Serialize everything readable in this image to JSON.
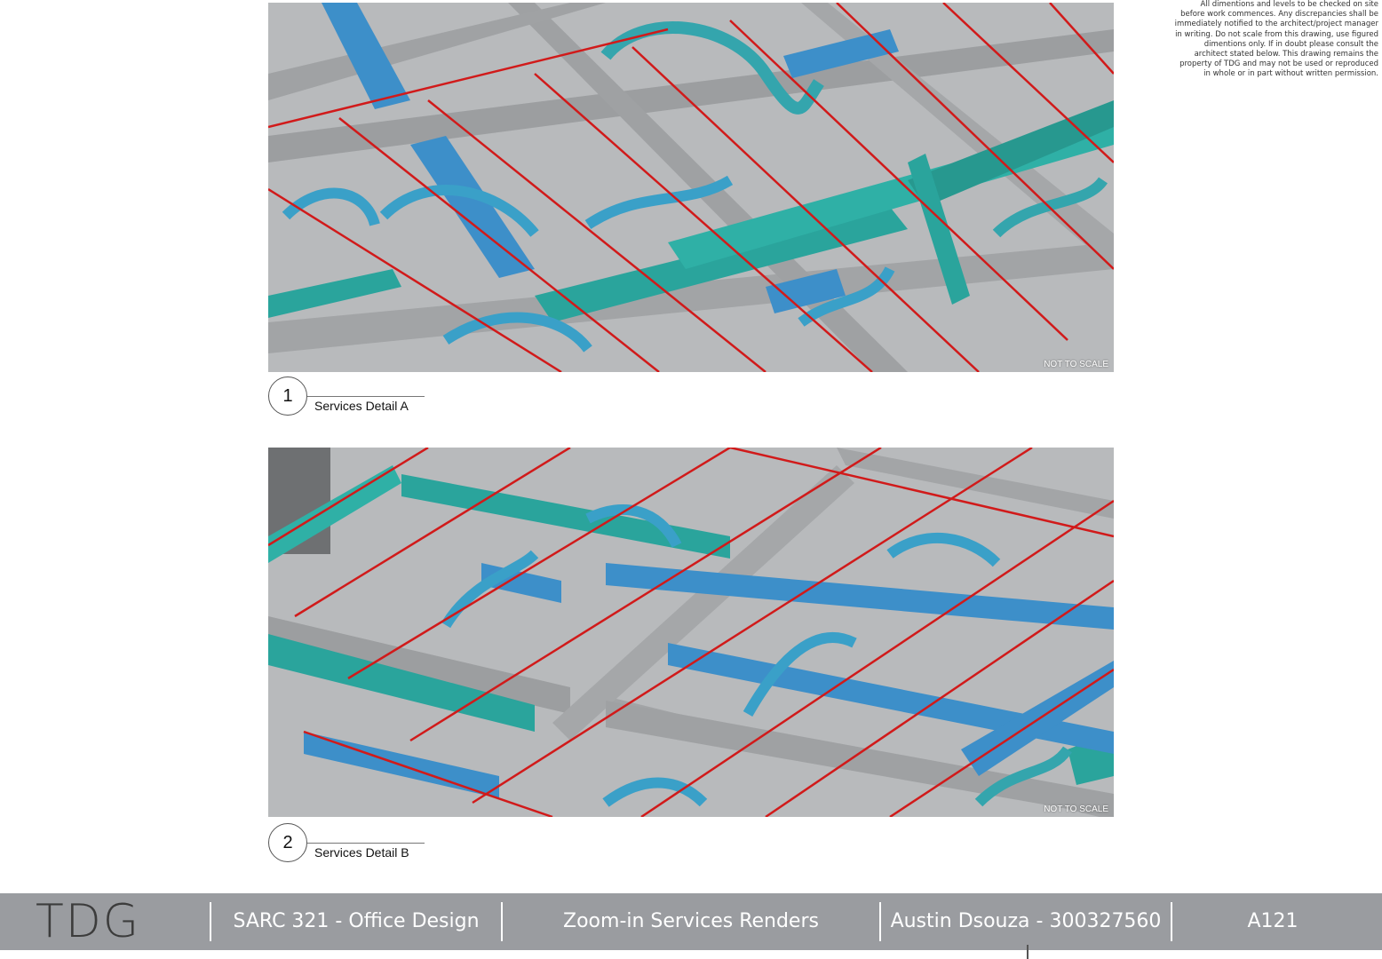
{
  "disclaimer": "All dimentions and levels to be checked on site before work commences. Any discrepancies shall be immediately notified to the architect/project manager in writing. Do not scale from this drawing, use figured dimentions only. If in doubt please consult the architect stated below. This drawing remains the property of TDG and may not be used or reproduced in whole or in part without written permission.",
  "views": [
    {
      "number": "1",
      "title": "Services Detail A",
      "scale_note": "NOT TO SCALE"
    },
    {
      "number": "2",
      "title": "Services Detail B",
      "scale_note": "NOT TO SCALE"
    }
  ],
  "title_block": {
    "logo": "TDG",
    "course": "SARC 321 - Office Design",
    "sheet_title": "Zoom-in Services Renders",
    "author": "Austin Dsouza - 300327560",
    "sheet_number": "A121"
  },
  "colors": {
    "slab": "#b4b6b8",
    "beam": "#9c9ea0",
    "duct_blue": "#3d8fc9",
    "duct_teal": "#2aa49c",
    "sprinkler_red": "#d11a1a",
    "footer": "#9a9ca0"
  }
}
